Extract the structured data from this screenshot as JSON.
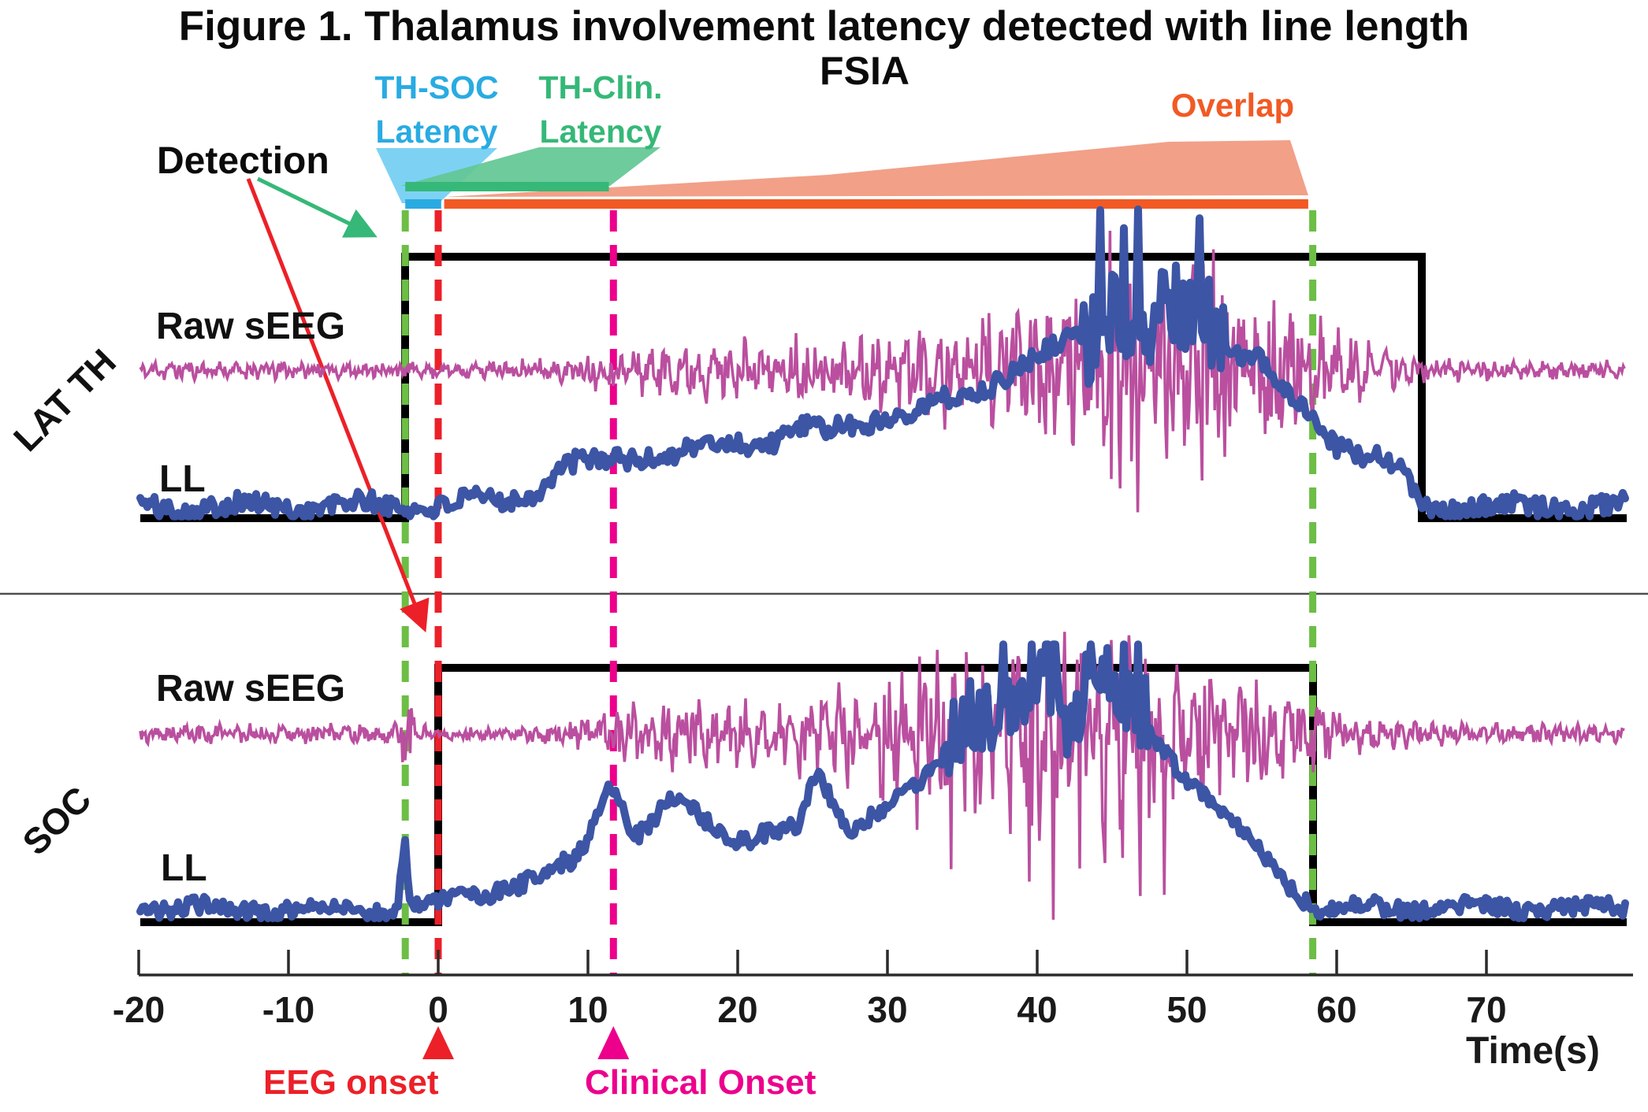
{
  "figure": {
    "title": "Figure 1. Thalamus involvement latency detected with line length",
    "subtitle": "FSIA"
  },
  "annotations": {
    "detection": {
      "label": "Detection",
      "color": "#0b0b0b"
    },
    "th_soc_latency": {
      "lines": [
        "TH-SOC",
        "Latency"
      ],
      "color": "#29ABE2",
      "span_s": [
        -2.2,
        0.2
      ]
    },
    "th_clin_latency": {
      "lines": [
        "TH-Clin.",
        "Latency"
      ],
      "color": "#35B878",
      "span_s": [
        -2.2,
        11.4
      ]
    },
    "overlap": {
      "label": "Overlap",
      "color": "#F15A24",
      "fill": "#F2A088",
      "span_s": [
        0.4,
        58.1
      ]
    },
    "eeg_onset": {
      "label": "EEG onset",
      "color": "#EC2028",
      "t_s": 0
    },
    "clinical_onset": {
      "label": "Clinical Onset",
      "color": "#EC008C",
      "t_s": 11.7
    }
  },
  "row_labels": {
    "top_region": "LAT TH",
    "bottom_region": "SOC",
    "raw": "Raw sEEG",
    "ll": "LL"
  },
  "axis": {
    "label": "Time(s)",
    "ticks": [
      -20,
      -10,
      0,
      10,
      20,
      30,
      40,
      50,
      60,
      70
    ]
  },
  "chart_data": {
    "type": "line",
    "title": "FSIA",
    "xlabel": "Time(s)",
    "x_range": [
      -20,
      79
    ],
    "x_ticks": [
      -20,
      -10,
      0,
      10,
      20,
      30,
      40,
      50,
      60,
      70
    ],
    "grid": false,
    "legend_position": "none",
    "events_s": {
      "th_detection_onset": -2.2,
      "eeg_onset": 0,
      "clinical_onset": 11.7,
      "overlap_end": 58.4,
      "th_detection_end": 65.7
    },
    "vlines": [
      {
        "t": -2.2,
        "color": "#6CBE45",
        "style": "dashed"
      },
      {
        "t": 0,
        "color": "#EC2028",
        "style": "dashed"
      },
      {
        "t": 11.7,
        "color": "#EC008C",
        "style": "dashed"
      },
      {
        "t": 58.4,
        "color": "#6CBE45",
        "style": "dashed"
      }
    ],
    "latency_bars": [
      {
        "name": "TH-Clin. Latency",
        "from": -2.2,
        "to": 11.4,
        "color": "#35B878"
      },
      {
        "name": "TH-SOC Latency",
        "from": -2.2,
        "to": 0.2,
        "color": "#29ABE2"
      },
      {
        "name": "Overlap",
        "from": 0.4,
        "to": 58.1,
        "color": "#F15A24"
      }
    ],
    "panels": [
      {
        "name": "LAT TH",
        "detection_window_s": [
          -2.2,
          65.7
        ],
        "series": [
          {
            "name": "Raw sEEG",
            "color": "#BA4F9F",
            "style": "eeg",
            "envelope_rel": [
              [
                -20,
                0.09
              ],
              [
                0,
                0.08
              ],
              [
                5,
                0.09
              ],
              [
                8,
                0.12
              ],
              [
                12,
                0.2
              ],
              [
                16,
                0.25
              ],
              [
                20,
                0.3
              ],
              [
                25,
                0.35
              ],
              [
                30,
                0.42
              ],
              [
                34,
                0.5
              ],
              [
                38,
                0.58
              ],
              [
                42,
                0.72
              ],
              [
                45,
                0.88
              ],
              [
                48,
                1.0
              ],
              [
                50,
                0.92
              ],
              [
                52,
                0.88
              ],
              [
                55,
                0.75
              ],
              [
                57,
                0.62
              ],
              [
                58.4,
                0.52
              ],
              [
                60,
                0.38
              ],
              [
                62,
                0.27
              ],
              [
                64,
                0.18
              ],
              [
                66,
                0.12
              ],
              [
                68,
                0.1
              ],
              [
                79,
                0.09
              ]
            ],
            "spike_window_s": [
              40,
              53
            ]
          },
          {
            "name": "LL",
            "color": "#3C55A5",
            "style": "thick-line",
            "curve_rel": [
              [
                -20,
                0.035
              ],
              [
                -2,
                0.04
              ],
              [
                0,
                0.04
              ],
              [
                2,
                0.045
              ],
              [
                4,
                0.055
              ],
              [
                6,
                0.08
              ],
              [
                7,
                0.11
              ],
              [
                8,
                0.15
              ],
              [
                9,
                0.17
              ],
              [
                10,
                0.17
              ],
              [
                11,
                0.18
              ],
              [
                12,
                0.19
              ],
              [
                14,
                0.2
              ],
              [
                16,
                0.21
              ],
              [
                18,
                0.22
              ],
              [
                20,
                0.24
              ],
              [
                22,
                0.25
              ],
              [
                23,
                0.26
              ],
              [
                24,
                0.29
              ],
              [
                25,
                0.27
              ],
              [
                26,
                0.27
              ],
              [
                28,
                0.3
              ],
              [
                30,
                0.33
              ],
              [
                32,
                0.34
              ],
              [
                34,
                0.37
              ],
              [
                36,
                0.41
              ],
              [
                38,
                0.46
              ],
              [
                40,
                0.51
              ],
              [
                42,
                0.56
              ],
              [
                44,
                0.62
              ],
              [
                45.5,
                0.66
              ],
              [
                47,
                0.62
              ],
              [
                48.5,
                0.66
              ],
              [
                50,
                0.68
              ],
              [
                51,
                0.62
              ],
              [
                52,
                0.58
              ],
              [
                53,
                0.55
              ],
              [
                54,
                0.52
              ],
              [
                55,
                0.5
              ],
              [
                56,
                0.42
              ],
              [
                57,
                0.37
              ],
              [
                58,
                0.33
              ],
              [
                59,
                0.28
              ],
              [
                60,
                0.24
              ],
              [
                61,
                0.22
              ],
              [
                62,
                0.2
              ],
              [
                63,
                0.18
              ],
              [
                64,
                0.15
              ],
              [
                65,
                0.1
              ],
              [
                65.7,
                0.05
              ],
              [
                66.5,
                0.035
              ],
              [
                79,
                0.035
              ]
            ],
            "burst_window_s": [
              43,
              52.5
            ]
          }
        ]
      },
      {
        "name": "SOC",
        "detection_window_s": [
          0,
          58.4
        ],
        "series": [
          {
            "name": "Raw sEEG",
            "color": "#BA4F9F",
            "style": "eeg",
            "envelope_rel": [
              [
                -20,
                0.1
              ],
              [
                -2.6,
                0.1
              ],
              [
                -2.3,
                0.38
              ],
              [
                -1.8,
                0.38
              ],
              [
                -1.4,
                0.1
              ],
              [
                0,
                0.08
              ],
              [
                3,
                0.07
              ],
              [
                6,
                0.09
              ],
              [
                9,
                0.14
              ],
              [
                11,
                0.22
              ],
              [
                12,
                0.28
              ],
              [
                14,
                0.32
              ],
              [
                17,
                0.36
              ],
              [
                20,
                0.4
              ],
              [
                23,
                0.44
              ],
              [
                26,
                0.5
              ],
              [
                29,
                0.58
              ],
              [
                32,
                0.68
              ],
              [
                35,
                0.8
              ],
              [
                38,
                0.9
              ],
              [
                40,
                0.95
              ],
              [
                43,
                1.0
              ],
              [
                45,
                0.93
              ],
              [
                48,
                0.87
              ],
              [
                50,
                0.8
              ],
              [
                52,
                0.72
              ],
              [
                54,
                0.62
              ],
              [
                56,
                0.52
              ],
              [
                58,
                0.42
              ],
              [
                58.4,
                0.38
              ],
              [
                59.5,
                0.27
              ],
              [
                61,
                0.2
              ],
              [
                63,
                0.16
              ],
              [
                66,
                0.12
              ],
              [
                70,
                0.1
              ],
              [
                79,
                0.09
              ]
            ],
            "downspike_window_s": [
              29,
              50
            ]
          },
          {
            "name": "LL",
            "color": "#3C55A5",
            "style": "thick-line",
            "curve_rel": [
              [
                -20,
                0.045
              ],
              [
                -2.6,
                0.04
              ],
              [
                -2.45,
                0.34
              ],
              [
                -2.3,
                0.2
              ],
              [
                -2.15,
                0.37
              ],
              [
                -2,
                0.08
              ],
              [
                -1,
                0.05
              ],
              [
                0,
                0.06
              ],
              [
                1,
                0.08
              ],
              [
                2,
                0.1
              ],
              [
                3,
                0.11
              ],
              [
                4,
                0.12
              ],
              [
                5,
                0.13
              ],
              [
                6,
                0.15
              ],
              [
                7,
                0.17
              ],
              [
                8,
                0.2
              ],
              [
                9,
                0.22
              ],
              [
                10,
                0.32
              ],
              [
                11,
                0.46
              ],
              [
                11.6,
                0.54
              ],
              [
                12.2,
                0.45
              ],
              [
                13,
                0.32
              ],
              [
                14,
                0.35
              ],
              [
                15,
                0.42
              ],
              [
                16,
                0.47
              ],
              [
                16.8,
                0.44
              ],
              [
                18,
                0.38
              ],
              [
                19,
                0.34
              ],
              [
                20,
                0.32
              ],
              [
                21,
                0.31
              ],
              [
                22,
                0.33
              ],
              [
                23,
                0.32
              ],
              [
                24,
                0.36
              ],
              [
                25,
                0.52
              ],
              [
                25.6,
                0.56
              ],
              [
                26.5,
                0.44
              ],
              [
                27.5,
                0.36
              ],
              [
                28.5,
                0.39
              ],
              [
                29.5,
                0.41
              ],
              [
                30.5,
                0.45
              ],
              [
                31.5,
                0.5
              ],
              [
                32.5,
                0.55
              ],
              [
                33.5,
                0.64
              ],
              [
                34.5,
                0.72
              ],
              [
                35.5,
                0.8
              ],
              [
                36.5,
                0.75
              ],
              [
                37.5,
                0.84
              ],
              [
                38.5,
                0.8
              ],
              [
                39.5,
                0.9
              ],
              [
                40.5,
                0.92
              ],
              [
                41.5,
                0.84
              ],
              [
                42.5,
                0.8
              ],
              [
                43.5,
                0.93
              ],
              [
                44.5,
                0.87
              ],
              [
                45.5,
                0.83
              ],
              [
                46.5,
                0.78
              ],
              [
                47.5,
                0.72
              ],
              [
                48.5,
                0.66
              ],
              [
                49.5,
                0.58
              ],
              [
                50.5,
                0.53
              ],
              [
                51.5,
                0.47
              ],
              [
                52.5,
                0.4
              ],
              [
                53.5,
                0.34
              ],
              [
                54.5,
                0.28
              ],
              [
                55.5,
                0.23
              ],
              [
                56.5,
                0.16
              ],
              [
                57.5,
                0.1
              ],
              [
                58.4,
                0.06
              ],
              [
                59,
                0.05
              ],
              [
                60,
                0.045
              ],
              [
                79,
                0.045
              ]
            ],
            "burst_window_s": [
              33.5,
              47.5
            ]
          }
        ]
      }
    ]
  }
}
